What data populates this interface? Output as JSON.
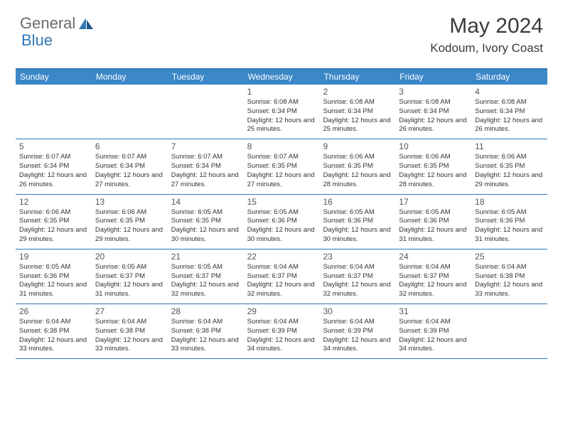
{
  "logo": {
    "general": "General",
    "blue": "Blue"
  },
  "title": "May 2024",
  "location": "Kodoum, Ivory Coast",
  "colors": {
    "header_bg": "#3b87c8",
    "header_text": "#ffffff",
    "border": "#2f77b6",
    "logo_gray": "#6a6a6a",
    "logo_blue": "#2f77b6",
    "text": "#333333"
  },
  "day_names": [
    "Sunday",
    "Monday",
    "Tuesday",
    "Wednesday",
    "Thursday",
    "Friday",
    "Saturday"
  ],
  "weeks": [
    [
      {
        "n": "",
        "sr": "",
        "ss": "",
        "dl": ""
      },
      {
        "n": "",
        "sr": "",
        "ss": "",
        "dl": ""
      },
      {
        "n": "",
        "sr": "",
        "ss": "",
        "dl": ""
      },
      {
        "n": "1",
        "sr": "6:08 AM",
        "ss": "6:34 PM",
        "dl": "12 hours and 25 minutes."
      },
      {
        "n": "2",
        "sr": "6:08 AM",
        "ss": "6:34 PM",
        "dl": "12 hours and 25 minutes."
      },
      {
        "n": "3",
        "sr": "6:08 AM",
        "ss": "6:34 PM",
        "dl": "12 hours and 26 minutes."
      },
      {
        "n": "4",
        "sr": "6:08 AM",
        "ss": "6:34 PM",
        "dl": "12 hours and 26 minutes."
      }
    ],
    [
      {
        "n": "5",
        "sr": "6:07 AM",
        "ss": "6:34 PM",
        "dl": "12 hours and 26 minutes."
      },
      {
        "n": "6",
        "sr": "6:07 AM",
        "ss": "6:34 PM",
        "dl": "12 hours and 27 minutes."
      },
      {
        "n": "7",
        "sr": "6:07 AM",
        "ss": "6:34 PM",
        "dl": "12 hours and 27 minutes."
      },
      {
        "n": "8",
        "sr": "6:07 AM",
        "ss": "6:35 PM",
        "dl": "12 hours and 27 minutes."
      },
      {
        "n": "9",
        "sr": "6:06 AM",
        "ss": "6:35 PM",
        "dl": "12 hours and 28 minutes."
      },
      {
        "n": "10",
        "sr": "6:06 AM",
        "ss": "6:35 PM",
        "dl": "12 hours and 28 minutes."
      },
      {
        "n": "11",
        "sr": "6:06 AM",
        "ss": "6:35 PM",
        "dl": "12 hours and 29 minutes."
      }
    ],
    [
      {
        "n": "12",
        "sr": "6:06 AM",
        "ss": "6:35 PM",
        "dl": "12 hours and 29 minutes."
      },
      {
        "n": "13",
        "sr": "6:06 AM",
        "ss": "6:35 PM",
        "dl": "12 hours and 29 minutes."
      },
      {
        "n": "14",
        "sr": "6:05 AM",
        "ss": "6:35 PM",
        "dl": "12 hours and 30 minutes."
      },
      {
        "n": "15",
        "sr": "6:05 AM",
        "ss": "6:36 PM",
        "dl": "12 hours and 30 minutes."
      },
      {
        "n": "16",
        "sr": "6:05 AM",
        "ss": "6:36 PM",
        "dl": "12 hours and 30 minutes."
      },
      {
        "n": "17",
        "sr": "6:05 AM",
        "ss": "6:36 PM",
        "dl": "12 hours and 31 minutes."
      },
      {
        "n": "18",
        "sr": "6:05 AM",
        "ss": "6:36 PM",
        "dl": "12 hours and 31 minutes."
      }
    ],
    [
      {
        "n": "19",
        "sr": "6:05 AM",
        "ss": "6:36 PM",
        "dl": "12 hours and 31 minutes."
      },
      {
        "n": "20",
        "sr": "6:05 AM",
        "ss": "6:37 PM",
        "dl": "12 hours and 31 minutes."
      },
      {
        "n": "21",
        "sr": "6:05 AM",
        "ss": "6:37 PM",
        "dl": "12 hours and 32 minutes."
      },
      {
        "n": "22",
        "sr": "6:04 AM",
        "ss": "6:37 PM",
        "dl": "12 hours and 32 minutes."
      },
      {
        "n": "23",
        "sr": "6:04 AM",
        "ss": "6:37 PM",
        "dl": "12 hours and 32 minutes."
      },
      {
        "n": "24",
        "sr": "6:04 AM",
        "ss": "6:37 PM",
        "dl": "12 hours and 32 minutes."
      },
      {
        "n": "25",
        "sr": "6:04 AM",
        "ss": "6:38 PM",
        "dl": "12 hours and 33 minutes."
      }
    ],
    [
      {
        "n": "26",
        "sr": "6:04 AM",
        "ss": "6:38 PM",
        "dl": "12 hours and 33 minutes."
      },
      {
        "n": "27",
        "sr": "6:04 AM",
        "ss": "6:38 PM",
        "dl": "12 hours and 33 minutes."
      },
      {
        "n": "28",
        "sr": "6:04 AM",
        "ss": "6:38 PM",
        "dl": "12 hours and 33 minutes."
      },
      {
        "n": "29",
        "sr": "6:04 AM",
        "ss": "6:39 PM",
        "dl": "12 hours and 34 minutes."
      },
      {
        "n": "30",
        "sr": "6:04 AM",
        "ss": "6:39 PM",
        "dl": "12 hours and 34 minutes."
      },
      {
        "n": "31",
        "sr": "6:04 AM",
        "ss": "6:39 PM",
        "dl": "12 hours and 34 minutes."
      },
      {
        "n": "",
        "sr": "",
        "ss": "",
        "dl": ""
      }
    ]
  ],
  "labels": {
    "sunrise": "Sunrise:",
    "sunset": "Sunset:",
    "daylight": "Daylight:"
  }
}
